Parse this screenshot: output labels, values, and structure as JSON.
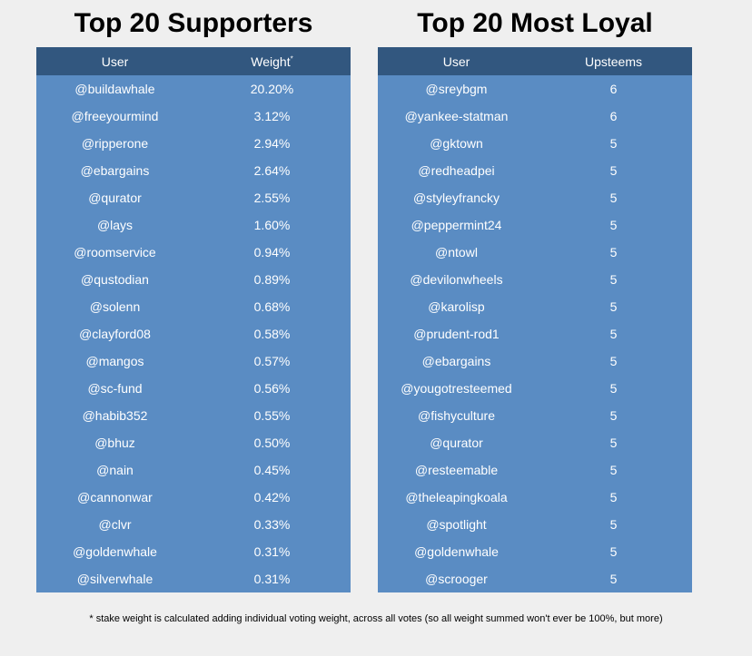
{
  "supporters": {
    "title": "Top 20 Supporters",
    "col_user": "User",
    "col_weight": "Weight",
    "weight_marker": "*",
    "rows": [
      {
        "user": "@buildawhale",
        "value": "20.20%"
      },
      {
        "user": "@freeyourmind",
        "value": "3.12%"
      },
      {
        "user": "@ripperone",
        "value": "2.94%"
      },
      {
        "user": "@ebargains",
        "value": "2.64%"
      },
      {
        "user": "@qurator",
        "value": "2.55%"
      },
      {
        "user": "@lays",
        "value": "1.60%"
      },
      {
        "user": "@roomservice",
        "value": "0.94%"
      },
      {
        "user": "@qustodian",
        "value": "0.89%"
      },
      {
        "user": "@solenn",
        "value": "0.68%"
      },
      {
        "user": "@clayford08",
        "value": "0.58%"
      },
      {
        "user": "@mangos",
        "value": "0.57%"
      },
      {
        "user": "@sc-fund",
        "value": "0.56%"
      },
      {
        "user": "@habib352",
        "value": "0.55%"
      },
      {
        "user": "@bhuz",
        "value": "0.50%"
      },
      {
        "user": "@nain",
        "value": "0.45%"
      },
      {
        "user": "@cannonwar",
        "value": "0.42%"
      },
      {
        "user": "@clvr",
        "value": "0.33%"
      },
      {
        "user": "@goldenwhale",
        "value": "0.31%"
      },
      {
        "user": "@silverwhale",
        "value": "0.31%"
      }
    ]
  },
  "loyal": {
    "title": "Top 20 Most Loyal",
    "col_user": "User",
    "col_upsteems": "Upsteems",
    "rows": [
      {
        "user": "@sreybgm",
        "value": "6"
      },
      {
        "user": "@yankee-statman",
        "value": "6"
      },
      {
        "user": "@gktown",
        "value": "5"
      },
      {
        "user": "@redheadpei",
        "value": "5"
      },
      {
        "user": "@styleyfrancky",
        "value": "5"
      },
      {
        "user": "@peppermint24",
        "value": "5"
      },
      {
        "user": "@ntowl",
        "value": "5"
      },
      {
        "user": "@devilonwheels",
        "value": "5"
      },
      {
        "user": "@karolisp",
        "value": "5"
      },
      {
        "user": "@prudent-rod1",
        "value": "5"
      },
      {
        "user": "@ebargains",
        "value": "5"
      },
      {
        "user": "@yougotresteemed",
        "value": "5"
      },
      {
        "user": "@fishyculture",
        "value": "5"
      },
      {
        "user": "@qurator",
        "value": "5"
      },
      {
        "user": "@resteemable",
        "value": "5"
      },
      {
        "user": "@theleapingkoala",
        "value": "5"
      },
      {
        "user": "@spotlight",
        "value": "5"
      },
      {
        "user": "@goldenwhale",
        "value": "5"
      },
      {
        "user": "@scrooger",
        "value": "5"
      }
    ]
  },
  "footnote": "* stake weight is calculated adding individual voting weight, across all votes (so all weight summed won't ever be 100%, but more)",
  "colors": {
    "header_bg": "#32577f",
    "body_bg": "#5a8cc3",
    "page_bg": "#efefef"
  }
}
